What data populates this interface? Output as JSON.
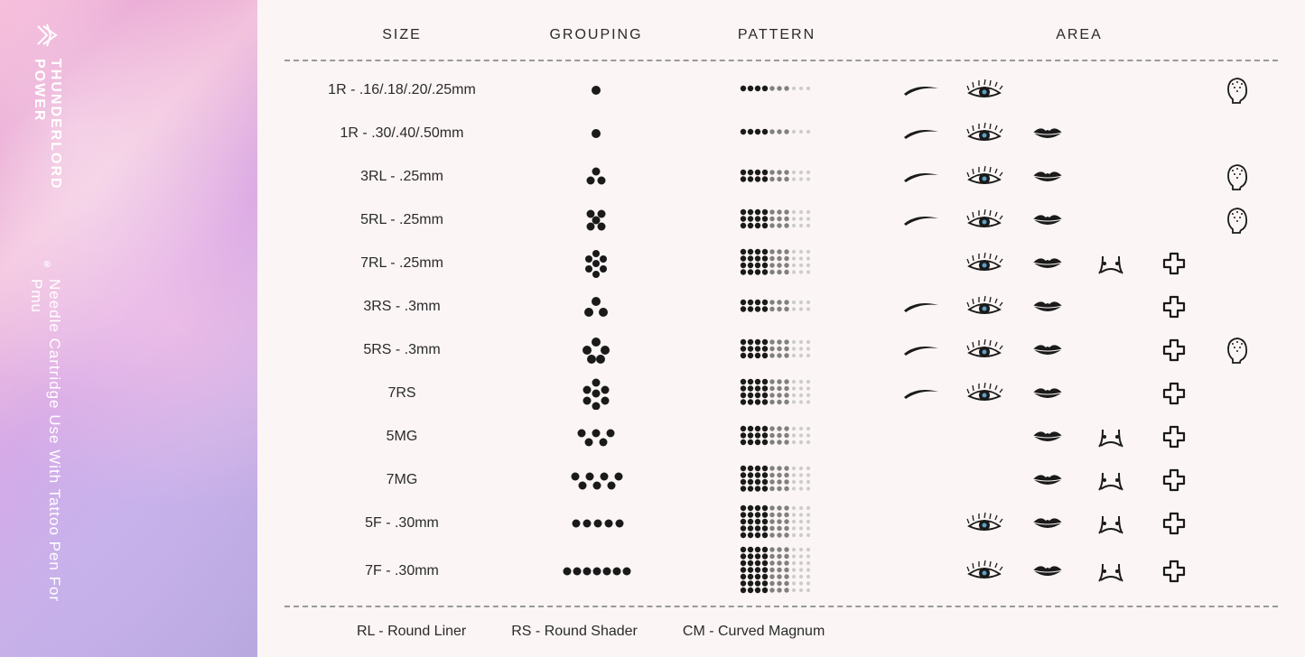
{
  "brand": "THUNDERLORD POWER",
  "brand_reg": "®",
  "tagline": "Needle Cartridge Use With Tattoo Pen For Pmu",
  "headers": {
    "size": "SIZE",
    "grouping": "GROUPING",
    "pattern": "PATTERN",
    "area": "AREA"
  },
  "colors": {
    "dot": "#1a1a1a",
    "pattern_dark": "#1a1a1a",
    "pattern_mid": "#808080",
    "pattern_light": "#cccccc",
    "icon": "#1a1a1a"
  },
  "area_icons": [
    "brow",
    "eye",
    "lips",
    "areola",
    "medical",
    "scalp"
  ],
  "rows": [
    {
      "size": "1R - .16/.18/.20/.25mm",
      "group": "r1",
      "pattern_rows": 1,
      "areas": [
        "brow",
        "eye",
        "",
        "",
        "",
        "scalp"
      ]
    },
    {
      "size": "1R - .30/.40/.50mm",
      "group": "r1",
      "pattern_rows": 1,
      "areas": [
        "brow",
        "eye",
        "lips",
        "",
        "",
        ""
      ]
    },
    {
      "size": "3RL - .25mm",
      "group": "r3",
      "pattern_rows": 2,
      "areas": [
        "brow",
        "eye",
        "lips",
        "",
        "",
        "scalp"
      ]
    },
    {
      "size": "5RL - .25mm",
      "group": "r5",
      "pattern_rows": 3,
      "areas": [
        "brow",
        "eye",
        "lips",
        "",
        "",
        "scalp"
      ]
    },
    {
      "size": "7RL - .25mm",
      "group": "r7",
      "pattern_rows": 4,
      "areas": [
        "",
        "eye",
        "lips",
        "areola",
        "medical",
        ""
      ]
    },
    {
      "size": "3RS - .3mm",
      "group": "s3",
      "pattern_rows": 2,
      "areas": [
        "brow",
        "eye",
        "lips",
        "",
        "medical",
        ""
      ]
    },
    {
      "size": "5RS - .3mm",
      "group": "s5",
      "pattern_rows": 3,
      "areas": [
        "brow",
        "eye",
        "lips",
        "",
        "medical",
        "scalp"
      ]
    },
    {
      "size": "7RS",
      "group": "s7",
      "pattern_rows": 4,
      "areas": [
        "brow",
        "eye",
        "lips",
        "",
        "medical",
        ""
      ]
    },
    {
      "size": "5MG",
      "group": "m5",
      "pattern_rows": 3,
      "areas": [
        "",
        "",
        "lips",
        "areola",
        "medical",
        ""
      ]
    },
    {
      "size": "7MG",
      "group": "m7",
      "pattern_rows": 4,
      "areas": [
        "",
        "",
        "lips",
        "areola",
        "medical",
        ""
      ]
    },
    {
      "size": "5F - .30mm",
      "group": "f5",
      "pattern_rows": 5,
      "areas": [
        "",
        "eye",
        "lips",
        "areola",
        "medical",
        ""
      ]
    },
    {
      "size": "7F - .30mm",
      "group": "f7",
      "pattern_rows": 7,
      "areas": [
        "",
        "eye",
        "lips",
        "areola",
        "medical",
        ""
      ]
    }
  ],
  "legend": [
    "RL - Round Liner",
    "RS - Round Shader",
    "CM - Curved Magnum"
  ]
}
